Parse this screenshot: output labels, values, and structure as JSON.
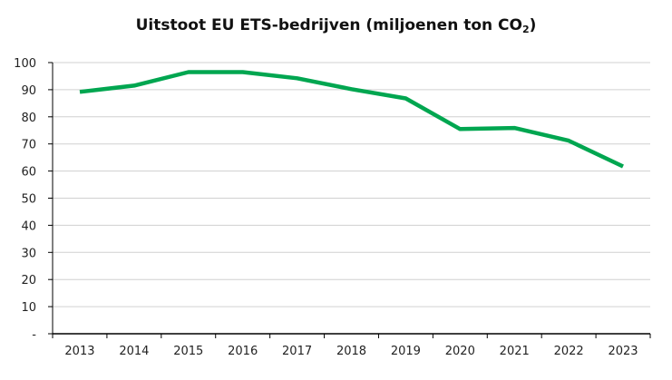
{
  "chart_data": {
    "type": "line",
    "title": "Uitstoot EU ETS-bedrijven (miljoenen ton CO",
    "title_subscript": "2",
    "title_suffix": ")",
    "xlabel": "",
    "ylabel": "",
    "categories": [
      "2013",
      "2014",
      "2015",
      "2016",
      "2017",
      "2018",
      "2019",
      "2020",
      "2021",
      "2022",
      "2023"
    ],
    "series": [
      {
        "values": [
          89.2,
          91.5,
          96.5,
          96.5,
          94.2,
          90.2,
          86.8,
          75.5,
          75.9,
          71.2,
          61.7
        ]
      }
    ],
    "ylim": [
      0,
      100
    ],
    "yticks": [
      0,
      10,
      20,
      30,
      40,
      50,
      60,
      70,
      80,
      90,
      100
    ],
    "ytick_labels": [
      "-",
      "10",
      "20",
      "30",
      "40",
      "50",
      "60",
      "70",
      "80",
      "90",
      "100"
    ],
    "grid": true,
    "legend": "none",
    "line_color": "#00a650",
    "grid_color": "#d0d0d0",
    "axis_color": "#000000"
  }
}
